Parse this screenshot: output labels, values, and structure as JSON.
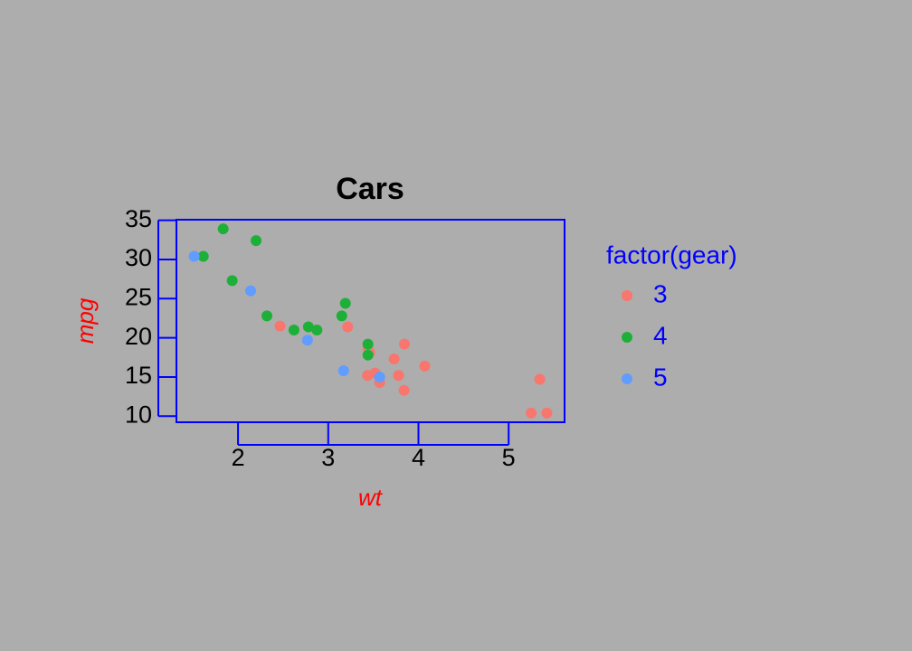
{
  "chart_data": {
    "type": "scatter",
    "title": "Cars",
    "x_label": "wt",
    "y_label": "mpg",
    "legend_title": "factor(gear)",
    "xlim": [
      1.317,
      5.62
    ],
    "ylim": [
      9.225,
      35.075
    ],
    "xticks": [
      2,
      3,
      4,
      5
    ],
    "yticks": [
      10,
      15,
      20,
      25,
      30,
      35
    ],
    "series": [
      {
        "name": "3",
        "color": "#F8766D",
        "x": [
          3.215,
          3.44,
          3.46,
          3.57,
          4.07,
          3.73,
          3.78,
          5.25,
          5.424,
          5.345,
          2.465,
          3.52,
          3.435,
          3.84,
          3.845
        ],
        "values": [
          21.4,
          18.7,
          18.1,
          14.3,
          16.4,
          17.3,
          15.2,
          10.4,
          10.4,
          14.7,
          21.5,
          15.5,
          15.2,
          13.3,
          19.2
        ]
      },
      {
        "name": "4",
        "color": "#1DB038",
        "x": [
          2.62,
          2.875,
          2.32,
          3.19,
          3.15,
          3.44,
          3.44,
          2.2,
          1.615,
          1.835,
          1.935,
          2.78
        ],
        "values": [
          21.0,
          21.0,
          22.8,
          24.4,
          22.8,
          19.2,
          17.8,
          32.4,
          30.4,
          33.9,
          27.3,
          21.4
        ]
      },
      {
        "name": "5",
        "color": "#619CFF",
        "x": [
          2.14,
          1.513,
          3.17,
          2.77,
          3.57
        ],
        "values": [
          26.0,
          30.4,
          15.8,
          19.7,
          15.0
        ]
      }
    ]
  }
}
